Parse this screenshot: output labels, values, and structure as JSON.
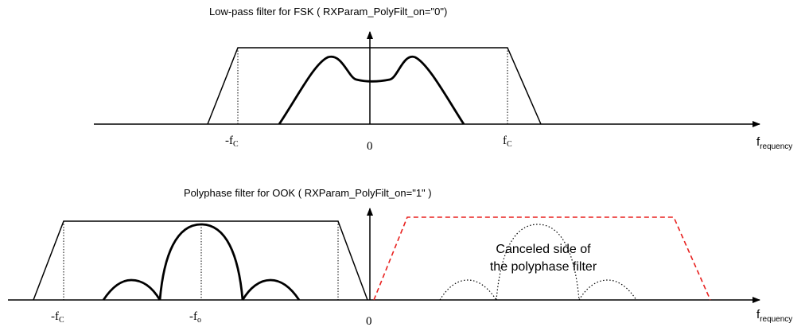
{
  "top_panel": {
    "title": "Low-pass filter for FSK  ( RXParam_PolyFilt_on=\"0\")",
    "x_axis_label": {
      "base": "f",
      "sub": "requency"
    },
    "tick_labels": [
      {
        "id": "neg-fc",
        "base": "-f",
        "sub": "C"
      },
      {
        "id": "zero",
        "base": "0",
        "sub": ""
      },
      {
        "id": "pos-fc",
        "base": "f",
        "sub": "C"
      }
    ]
  },
  "bottom_panel": {
    "title": "Polyphase filter for OOK  ( RXParam_PolyFilt_on=\"1\" )",
    "x_axis_label": {
      "base": "f",
      "sub": "requency"
    },
    "tick_labels": [
      {
        "id": "neg-fc",
        "base": "-f",
        "sub": "C"
      },
      {
        "id": "neg-fo",
        "base": "-f",
        "sub": "o"
      },
      {
        "id": "zero",
        "base": "0",
        "sub": ""
      }
    ],
    "annotation_lines": [
      "Canceled side of",
      "the polyphase filter"
    ]
  },
  "colors": {
    "line": "#000000",
    "canceled_filter": "#e8201e"
  }
}
